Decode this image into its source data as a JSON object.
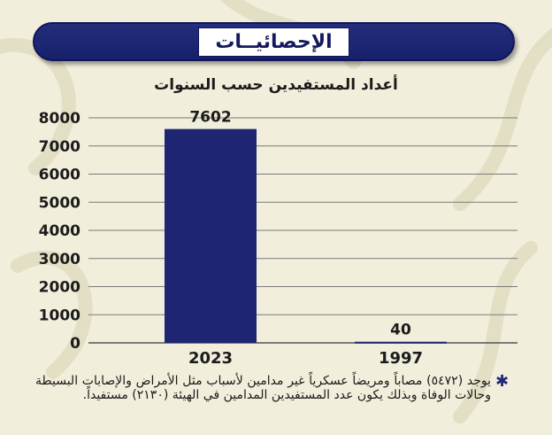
{
  "header": {
    "title": "الإحصائيــات"
  },
  "chart_data": {
    "type": "bar",
    "title": "أعداد المستفيدين حسب السنوات",
    "categories": [
      "2023",
      "1997"
    ],
    "values": [
      7602,
      40
    ],
    "data_labels": [
      "7602",
      "40"
    ],
    "ylim": [
      0,
      8000
    ],
    "yticks": [
      0,
      1000,
      2000,
      3000,
      4000,
      5000,
      6000,
      7000,
      8000
    ],
    "xlabel": "",
    "ylabel": "",
    "grid": true,
    "bar_color": "#1e2673"
  },
  "footnote": {
    "icon": "asterisk-icon",
    "text": "يوجد (٥٤٧٢) مصاباً ومريضاً عسكرياً غير مدامين لأسباب مثل الأمراض والإصابات البسيطة وحالات الوفاة وبذلك يكون عدد المستفيدين المدامين في الهيئة (٢١٣٠) مستفيداً."
  },
  "colors": {
    "header": "#1b2470",
    "background": "#f1eedb",
    "grid": "#7a7a7a"
  }
}
